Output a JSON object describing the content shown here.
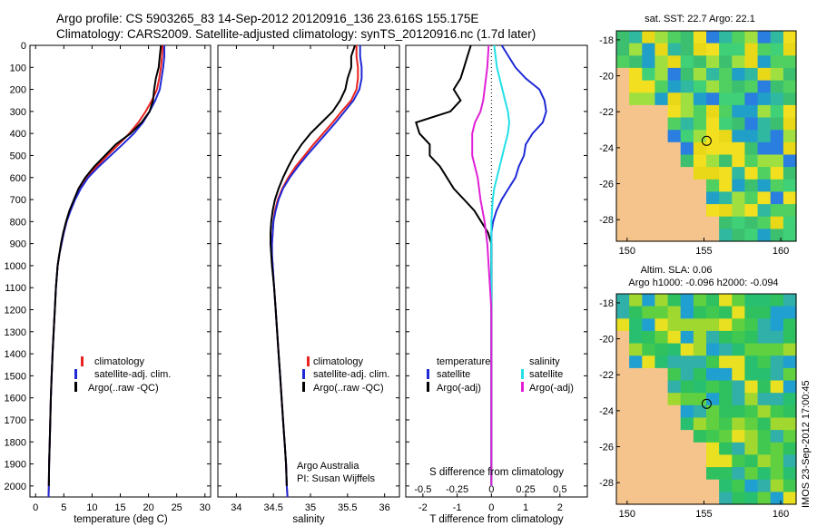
{
  "header": {
    "line1": "Argo profile: CS 5903265_83 14-Sep-2012 20120916_136 23.616S 155.175E",
    "line2": "Climatology: CARS2009. Satellite-adjusted climatology: synTS_20120916.nc (1.7d later)"
  },
  "footer": {
    "operator": "Argo Australia",
    "pi": "PI: Susan Wijffels",
    "stamp": "IMOS 23-Sep-2012 17:00:45"
  },
  "maps": {
    "sst_title": "sat. SST: 22.7 Argo: 22.1",
    "sla_title1": "Altim. SLA: 0.06",
    "sla_title2": "Argo h1000: -0.096 h2000: -0.094",
    "lon_ticks": [
      "150",
      "155",
      "160"
    ],
    "lat_ticks": [
      "-18",
      "-20",
      "-22",
      "-24",
      "-26",
      "-28"
    ],
    "argo_position": {
      "lon": 155.175,
      "lat": -23.616
    }
  },
  "colors": {
    "climatology": "#e8231f",
    "satellite": "#1f2ad6",
    "argo": "#000000",
    "salinity_satellite": "#22e0e8",
    "salinity_argo": "#e020d6",
    "land": "#f5c48c"
  },
  "chart_data": [
    {
      "type": "line",
      "id": "temperature",
      "xlabel": "temperature (deg C)",
      "ylabel": "",
      "xlim": [
        -1,
        31
      ],
      "ylim": [
        2050,
        0
      ],
      "xticks": [
        0,
        5,
        10,
        15,
        20,
        25,
        30
      ],
      "yticks": [
        0,
        100,
        200,
        300,
        400,
        500,
        600,
        700,
        800,
        900,
        1000,
        1100,
        1200,
        1300,
        1400,
        1500,
        1600,
        1700,
        1800,
        1900,
        2000
      ],
      "legend": [
        "climatology",
        "satellite-adj. clim.",
        "Argo(..raw -QC)"
      ],
      "series": [
        {
          "name": "climatology",
          "x": [
            22.5,
            22.4,
            22.2,
            21.9,
            21.5,
            20.6,
            19.5,
            18.2,
            16.6,
            14.7,
            12.7,
            10.8,
            9.0,
            7.8,
            6.9,
            6.1,
            5.5,
            5.0,
            4.6,
            4.2,
            3.9,
            3.6,
            3.4,
            3.2,
            3.0,
            2.85,
            2.7,
            2.6,
            2.5,
            2.4,
            2.35,
            2.3
          ],
          "y": [
            0,
            50,
            100,
            150,
            200,
            250,
            300,
            350,
            400,
            450,
            500,
            550,
            600,
            650,
            700,
            750,
            800,
            850,
            900,
            950,
            1000,
            1100,
            1200,
            1300,
            1400,
            1500,
            1600,
            1700,
            1800,
            1900,
            2000,
            2050
          ]
        },
        {
          "name": "satellite-adj. clim.",
          "x": [
            22.8,
            22.8,
            22.6,
            22.3,
            22.0,
            21.2,
            20.2,
            19.0,
            17.4,
            15.4,
            13.3,
            11.2,
            9.3,
            8.0,
            7.0,
            6.2,
            5.5,
            5.0,
            4.6,
            4.2,
            3.9,
            3.6,
            3.4,
            3.2,
            3.0,
            2.85,
            2.7,
            2.6,
            2.5,
            2.4,
            2.35,
            2.3
          ],
          "y": [
            0,
            50,
            100,
            150,
            200,
            250,
            300,
            350,
            400,
            450,
            500,
            550,
            600,
            650,
            700,
            750,
            800,
            850,
            900,
            950,
            1000,
            1100,
            1200,
            1300,
            1400,
            1500,
            1600,
            1700,
            1800,
            1900,
            2000,
            2050
          ]
        },
        {
          "name": "Argo(..raw -QC)",
          "x": [
            22.2,
            22.0,
            21.8,
            21.3,
            21.0,
            20.8,
            20.2,
            18.8,
            16.8,
            14.2,
            12.3,
            10.4,
            8.8,
            7.6,
            6.8,
            6.0,
            5.4,
            4.9,
            4.5,
            4.2,
            3.9,
            3.6,
            3.4,
            3.2,
            3.0,
            2.85,
            2.7,
            2.6,
            2.5,
            2.4,
            2.35
          ],
          "y": [
            0,
            50,
            100,
            150,
            200,
            250,
            300,
            350,
            400,
            450,
            500,
            550,
            600,
            650,
            700,
            750,
            800,
            850,
            900,
            950,
            1000,
            1100,
            1200,
            1300,
            1400,
            1500,
            1600,
            1700,
            1800,
            1900,
            2000
          ]
        }
      ]
    },
    {
      "type": "line",
      "id": "salinity",
      "xlabel": "salinity",
      "ylabel": "",
      "xlim": [
        33.75,
        36.2
      ],
      "ylim": [
        2050,
        0
      ],
      "xticks": [
        34,
        34.5,
        35,
        35.5,
        36
      ],
      "xticklabels": [
        "34",
        "34.5",
        "35",
        "35.5",
        "36"
      ],
      "legend": [
        "climatology",
        "satellite-adj. clim.",
        "Argo(..raw -QC)"
      ],
      "series": [
        {
          "name": "climatology",
          "x": [
            35.62,
            35.62,
            35.64,
            35.64,
            35.62,
            35.55,
            35.42,
            35.3,
            35.17,
            35.04,
            34.92,
            34.8,
            34.7,
            34.62,
            34.56,
            34.52,
            34.5,
            34.49,
            34.48,
            34.48,
            34.49,
            34.51,
            34.53,
            34.55,
            34.57,
            34.59,
            34.61,
            34.63,
            34.65,
            34.67,
            34.68,
            34.69
          ],
          "y": [
            0,
            50,
            100,
            150,
            200,
            250,
            300,
            350,
            400,
            450,
            500,
            550,
            600,
            650,
            700,
            750,
            800,
            850,
            900,
            950,
            1000,
            1100,
            1200,
            1300,
            1400,
            1500,
            1600,
            1700,
            1800,
            1900,
            2000,
            2050
          ]
        },
        {
          "name": "satellite-adj. clim.",
          "x": [
            35.67,
            35.67,
            35.69,
            35.69,
            35.66,
            35.58,
            35.46,
            35.34,
            35.21,
            35.08,
            34.95,
            34.83,
            34.72,
            34.63,
            34.57,
            34.53,
            34.5,
            34.49,
            34.48,
            34.48,
            34.49,
            34.51,
            34.53,
            34.55,
            34.57,
            34.59,
            34.61,
            34.63,
            34.65,
            34.67,
            34.68,
            34.69
          ],
          "y": [
            0,
            50,
            100,
            150,
            200,
            250,
            300,
            350,
            400,
            450,
            500,
            550,
            600,
            650,
            700,
            750,
            800,
            850,
            900,
            950,
            1000,
            1100,
            1200,
            1300,
            1400,
            1500,
            1600,
            1700,
            1800,
            1900,
            2000,
            2050
          ]
        },
        {
          "name": "Argo(..raw -QC)",
          "x": [
            35.6,
            35.55,
            35.55,
            35.5,
            35.47,
            35.4,
            35.3,
            35.15,
            35.0,
            34.88,
            34.78,
            34.7,
            34.63,
            34.57,
            34.52,
            34.49,
            34.47,
            34.46,
            34.46,
            34.47,
            34.48,
            34.51,
            34.53,
            34.55,
            34.57,
            34.59,
            34.61,
            34.63,
            34.65,
            34.67,
            34.68
          ],
          "y": [
            0,
            50,
            100,
            150,
            200,
            250,
            300,
            350,
            400,
            450,
            500,
            550,
            600,
            650,
            700,
            750,
            800,
            850,
            900,
            950,
            1000,
            1100,
            1200,
            1300,
            1400,
            1500,
            1600,
            1700,
            1800,
            1900,
            2000
          ]
        }
      ]
    },
    {
      "type": "line",
      "id": "differences",
      "xlabel": "T difference from climatology",
      "xlabel_top": "S difference from climatology",
      "xlim": [
        -2.5,
        2.8
      ],
      "ylim": [
        2050,
        0
      ],
      "xticks": [
        -2,
        -1,
        0,
        1,
        2
      ],
      "sxticks": [
        -0.5,
        -0.25,
        0,
        0.25,
        0.5
      ],
      "sxticklabels": [
        "-0.5",
        "-0.25",
        "0",
        "0.25",
        "0.5"
      ],
      "legend_headers": [
        "temperature",
        "salinity"
      ],
      "legend": [
        "satellite",
        "Argo(-adj)",
        "satellite",
        "Argo(-adj)"
      ],
      "series": [
        {
          "name": "satellite",
          "quantity": "temperature",
          "x": [
            0.3,
            0.5,
            0.7,
            1.0,
            1.4,
            1.55,
            1.6,
            1.5,
            1.2,
            1.0,
            0.95,
            0.8,
            0.7,
            0.5,
            0.3,
            0.15,
            0.05,
            0.0,
            0.0,
            0,
            0,
            0,
            0,
            0,
            0
          ],
          "y": [
            0,
            50,
            100,
            150,
            200,
            250,
            300,
            350,
            400,
            450,
            500,
            550,
            600,
            650,
            700,
            750,
            800,
            850,
            900,
            1000,
            1200,
            1400,
            1600,
            1800,
            2000
          ]
        },
        {
          "name": "Argo(-adj)",
          "quantity": "temperature",
          "x": [
            -0.6,
            -0.7,
            -0.8,
            -0.9,
            -1.1,
            -0.9,
            -1.2,
            -2.2,
            -2.1,
            -1.8,
            -1.8,
            -1.5,
            -1.3,
            -1.1,
            -0.8,
            -0.5,
            -0.3,
            -0.1,
            0.0,
            0,
            0,
            0,
            0,
            0,
            0
          ],
          "y": [
            0,
            50,
            100,
            150,
            200,
            250,
            300,
            350,
            400,
            450,
            500,
            550,
            600,
            650,
            700,
            750,
            800,
            850,
            900,
            1000,
            1200,
            1400,
            1600,
            1800,
            2000
          ]
        },
        {
          "name": "satellite",
          "quantity": "salinity",
          "x": [
            0.02,
            0.04,
            0.06,
            0.08,
            0.1,
            0.12,
            0.13,
            0.12,
            0.1,
            0.08,
            0.06,
            0.04,
            0.02,
            0.01,
            0,
            0,
            0,
            0,
            0,
            0,
            0
          ],
          "y": [
            0,
            100,
            150,
            200,
            250,
            300,
            350,
            400,
            450,
            500,
            550,
            600,
            650,
            700,
            800,
            900,
            1000,
            1200,
            1400,
            1600,
            2000
          ]
        },
        {
          "name": "Argo(-adj)",
          "quantity": "salinity",
          "x": [
            -0.02,
            -0.03,
            -0.04,
            -0.05,
            -0.06,
            -0.08,
            -0.12,
            -0.14,
            -0.14,
            -0.14,
            -0.12,
            -0.1,
            -0.08,
            -0.05,
            -0.03,
            -0.02,
            0,
            0,
            0,
            0
          ],
          "y": [
            0,
            100,
            150,
            200,
            250,
            300,
            350,
            400,
            450,
            500,
            550,
            600,
            700,
            800,
            900,
            1000,
            1200,
            1400,
            1600,
            2000
          ]
        }
      ]
    }
  ]
}
